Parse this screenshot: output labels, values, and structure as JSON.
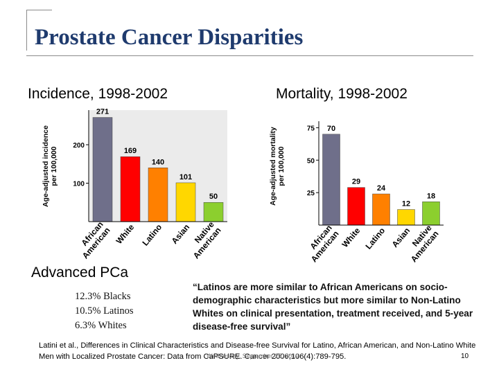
{
  "slide": {
    "title": "Prostate Cancer Disparities",
    "footer_date": "Wednesday, September 25, 2019",
    "page_number": "10"
  },
  "advanced": {
    "title": "Advanced PCa",
    "lines": [
      "12.3% Blacks",
      "10.5% Latinos",
      "6.3% Whites"
    ]
  },
  "quote": "“Latinos are more similar to African Americans on socio-demographic characteristics but more similar to Non-Latino Whites on clinical presentation, treatment received, and 5-year disease-free survival”",
  "citation": "Latini et al., Differences in Clinical Characteristics and Disease-free Survival for Latino, African American, and Non-Latino White Men with Localized Prostate Cancer: Data from CaPSURE. Cancer 2006;106(4):789-795.",
  "chart_data": [
    {
      "type": "bar",
      "title": "Incidence, 1998-2002",
      "ylabel": "Age-adjusted incidence\nper 100,000",
      "categories": [
        "African\nAmerican",
        "White",
        "Latino",
        "Asian",
        "Native\nAmerican"
      ],
      "values": [
        271,
        169,
        140,
        101,
        50
      ],
      "data_labels": [
        "271",
        "169",
        "140",
        "101",
        "50"
      ],
      "yticks": [
        100,
        200
      ],
      "ylim": [
        0,
        290
      ],
      "colors": [
        "#6f6f8a",
        "#ff0000",
        "#ff8000",
        "#ffd700",
        "#8ccf2e"
      ],
      "grid": false
    },
    {
      "type": "bar",
      "title": "Mortality, 1998-2002",
      "ylabel": "Age-adjusted mortality\nper 100,000",
      "categories": [
        "African\nAmerican",
        "White",
        "Latino",
        "Asian",
        "Native\nAmerican"
      ],
      "values": [
        70,
        29,
        24,
        12,
        18
      ],
      "data_labels": [
        "70",
        "29",
        "24",
        "12",
        "18"
      ],
      "yticks": [
        25,
        50,
        75
      ],
      "ylim": [
        0,
        80
      ],
      "colors": [
        "#6f6f8a",
        "#ff0000",
        "#ff8000",
        "#ffd700",
        "#8ccf2e"
      ],
      "grid": false
    }
  ]
}
